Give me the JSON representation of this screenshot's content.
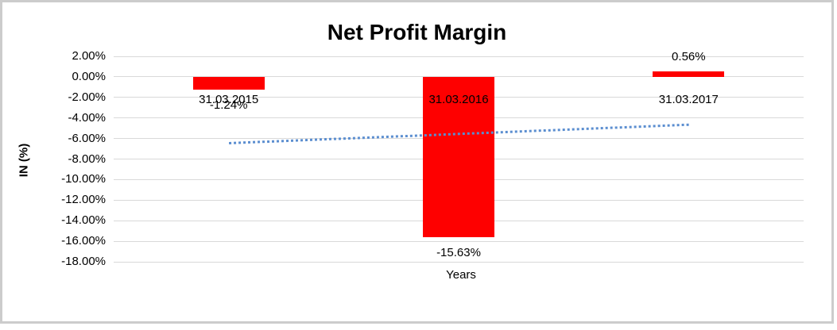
{
  "chart_data": {
    "type": "bar",
    "title": "Net Profit Margin",
    "xlabel": "Years",
    "ylabel": "IN (%)",
    "categories": [
      "31.03.2015",
      "31.03.2016",
      "31.03.2017"
    ],
    "series": [
      {
        "name": "Net Profit Margin",
        "values": [
          -1.24,
          -15.63,
          0.56
        ],
        "data_labels": [
          "-1.24%",
          "-15.63%",
          "0.56%"
        ],
        "color": "#fe0000"
      }
    ],
    "ylim": [
      -18,
      2
    ],
    "ytick_step": 2,
    "ytick_labels": [
      "2.00%",
      "0.00%",
      "-2.00%",
      "-4.00%",
      "-6.00%",
      "-8.00%",
      "-10.00%",
      "-12.00%",
      "-14.00%",
      "-16.00%",
      "-18.00%"
    ],
    "grid": true,
    "gridline_color": "#d9d9d9",
    "legend": "none",
    "trendline": {
      "type": "linear",
      "start_value": -6.34,
      "end_value": -4.54,
      "color": "#5b8ed0",
      "style": "dotted"
    }
  }
}
